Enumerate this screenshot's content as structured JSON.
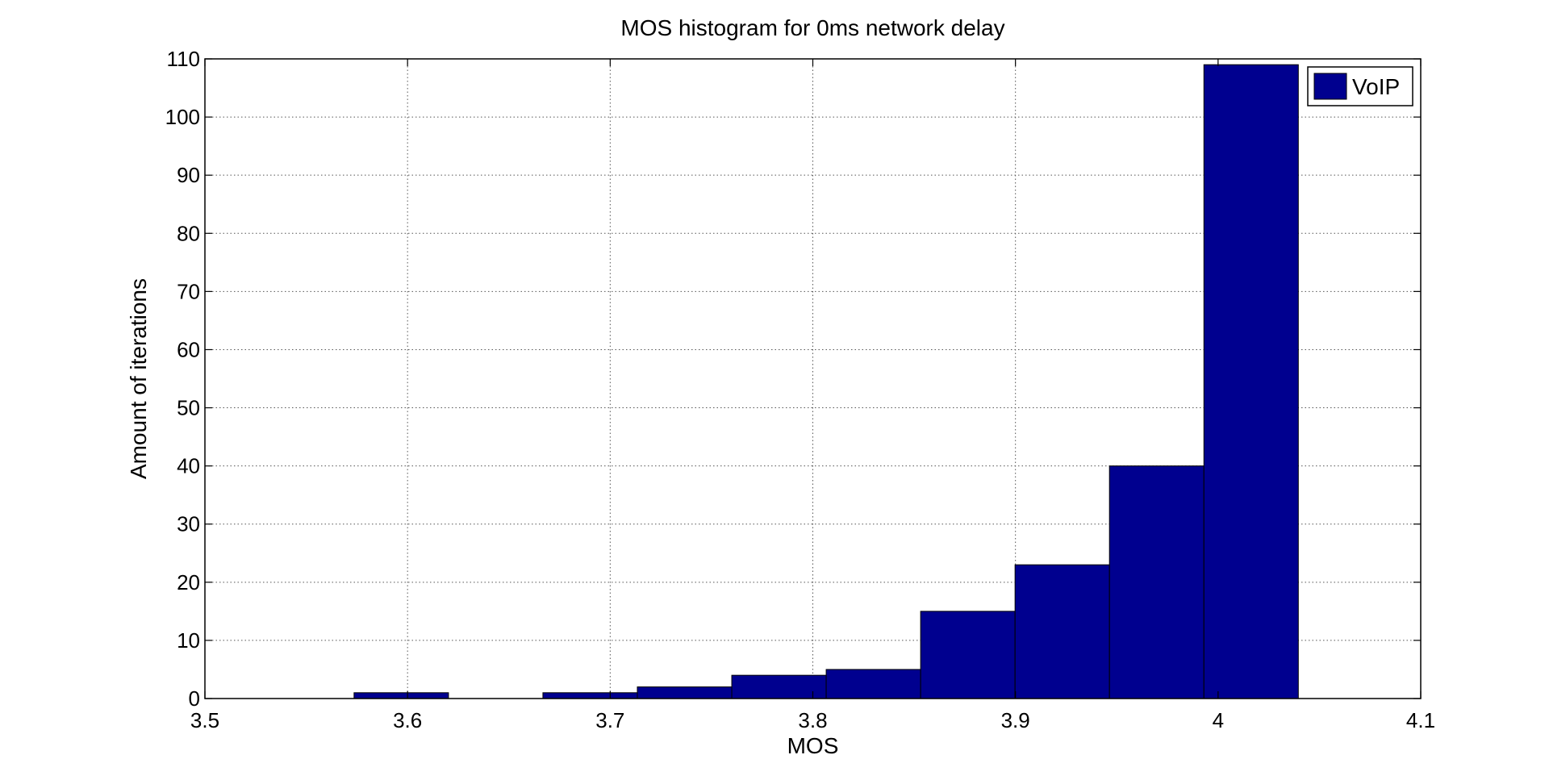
{
  "chart_data": {
    "type": "bar",
    "title": "MOS histogram for 0ms network delay",
    "xlabel": "MOS",
    "ylabel": "Amount of iterations",
    "xlim": [
      3.5,
      4.1
    ],
    "ylim": [
      0,
      110
    ],
    "xticks": [
      3.5,
      3.6,
      3.7,
      3.8,
      3.9,
      4.0,
      4.1
    ],
    "xtick_labels": [
      "3.5",
      "3.6",
      "3.7",
      "3.8",
      "3.9",
      "4",
      "4.1"
    ],
    "yticks": [
      0,
      10,
      20,
      30,
      40,
      50,
      60,
      70,
      80,
      90,
      100,
      110
    ],
    "ytick_labels": [
      "0",
      "10",
      "20",
      "30",
      "40",
      "50",
      "60",
      "70",
      "80",
      "90",
      "100",
      "110"
    ],
    "grid": true,
    "legend": {
      "position": "top-right",
      "entries": [
        "VoIP"
      ]
    },
    "series": [
      {
        "name": "VoIP",
        "color": "#00008F",
        "bin_width": 0.0466,
        "bin_centers": [
          3.5969,
          3.6435,
          3.6901,
          3.7367,
          3.7833,
          3.8299,
          3.8765,
          3.9231,
          3.9697,
          4.0163
        ],
        "values": [
          1,
          0,
          1,
          2,
          4,
          5,
          15,
          23,
          40,
          109
        ]
      }
    ]
  }
}
